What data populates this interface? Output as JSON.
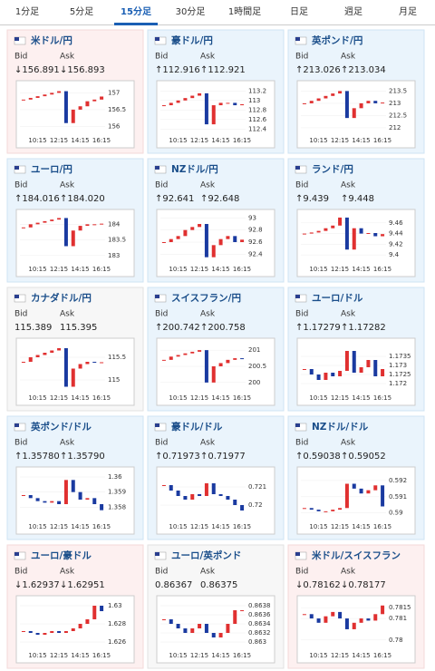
{
  "tabs": [
    "1分足",
    "5分足",
    "15分足",
    "30分足",
    "1時間足",
    "日足",
    "週足",
    "月足"
  ],
  "active_tab": 2,
  "labels": {
    "bid": "Bid",
    "ask": "Ask"
  },
  "x_ticks": [
    "10:15",
    "12:15",
    "14:15",
    "16:15"
  ],
  "cards": [
    {
      "name": "米ドル/円",
      "trend": "down",
      "bid": "↓156.891",
      "ask": "↓156.893",
      "ylim": [
        155.85,
        157.2
      ],
      "yticks": [
        156,
        156.5,
        157
      ],
      "values": [
        156.8,
        156.85,
        156.9,
        156.95,
        157.0,
        157.05,
        156.1,
        156.5,
        156.6,
        156.75,
        156.8,
        156.89
      ]
    },
    {
      "name": "豪ドル/円",
      "trend": "up",
      "bid": "↑112.916",
      "ask": "↑112.921",
      "ylim": [
        112.35,
        113.3
      ],
      "yticks": [
        112.4,
        112.6,
        112.8,
        113,
        113.2
      ],
      "values": [
        112.9,
        112.95,
        113.0,
        113.05,
        113.1,
        113.15,
        112.5,
        112.9,
        112.95,
        112.95,
        112.9,
        112.92
      ]
    },
    {
      "name": "英ポンド/円",
      "trend": "up",
      "bid": "↑213.026",
      "ask": "↑213.034",
      "ylim": [
        211.85,
        213.7
      ],
      "yticks": [
        212,
        212.5,
        213,
        213.5
      ],
      "values": [
        213.0,
        213.1,
        213.2,
        213.3,
        213.4,
        213.5,
        212.4,
        212.8,
        213.0,
        213.1,
        213.0,
        213.03
      ]
    },
    {
      "name": "ユーロ/円",
      "trend": "up",
      "bid": "↑184.016",
      "ask": "↑184.020",
      "ylim": [
        182.85,
        184.3
      ],
      "yticks": [
        183,
        183.5,
        184
      ],
      "values": [
        183.9,
        184.0,
        184.05,
        184.1,
        184.15,
        184.2,
        183.3,
        183.8,
        183.95,
        184.0,
        184.0,
        184.02
      ]
    },
    {
      "name": "NZドル/円",
      "trend": "up",
      "bid": "↑92.641",
      "ask": "↑92.648",
      "ylim": [
        92.3,
        93.05
      ],
      "yticks": [
        92.4,
        92.6,
        92.8,
        93
      ],
      "values": [
        92.6,
        92.65,
        92.7,
        92.8,
        92.85,
        92.9,
        92.35,
        92.55,
        92.65,
        92.7,
        92.6,
        92.64
      ]
    },
    {
      "name": "ランド/円",
      "trend": "up",
      "bid": "↑9.439",
      "ask": "↑9.448",
      "ylim": [
        9.39,
        9.475
      ],
      "yticks": [
        9.4,
        9.42,
        9.44,
        9.46
      ],
      "values": [
        9.44,
        9.442,
        9.445,
        9.45,
        9.455,
        9.47,
        9.41,
        9.45,
        9.44,
        9.441,
        9.435,
        9.439
      ]
    },
    {
      "name": "カナダドル/円",
      "trend": "flat",
      "bid": "115.389",
      "ask": "115.395",
      "ylim": [
        114.8,
        115.8
      ],
      "yticks": [
        115,
        115.5
      ],
      "values": [
        115.4,
        115.5,
        115.55,
        115.6,
        115.65,
        115.7,
        114.85,
        115.25,
        115.35,
        115.4,
        115.38,
        115.39
      ]
    },
    {
      "name": "スイスフラン/円",
      "trend": "up",
      "bid": "↑200.742",
      "ask": "↑200.758",
      "ylim": [
        199.8,
        201.2
      ],
      "yticks": [
        200,
        200.5,
        201
      ],
      "values": [
        200.7,
        200.8,
        200.85,
        200.9,
        200.95,
        201.0,
        200.0,
        200.5,
        200.6,
        200.7,
        200.75,
        200.74
      ]
    },
    {
      "name": "ユーロ/ドル",
      "trend": "up",
      "bid": "↑1.17279",
      "ask": "↑1.17282",
      "ylim": [
        1.1717,
        1.1742
      ],
      "yticks": [
        1.172,
        1.1725,
        1.173,
        1.1735
      ],
      "values": [
        1.1728,
        1.1725,
        1.1722,
        1.1726,
        1.1724,
        1.1727,
        1.1738,
        1.1726,
        1.1729,
        1.1733,
        1.1724,
        1.1728
      ]
    },
    {
      "name": "英ポンド/ドル",
      "trend": "up",
      "bid": "↑1.35780",
      "ask": "↑1.35790",
      "ylim": [
        1.3573,
        1.3603
      ],
      "yticks": [
        1.358,
        1.359,
        1.36
      ],
      "values": [
        1.3588,
        1.3586,
        1.3584,
        1.3583,
        1.3584,
        1.3582,
        1.3598,
        1.359,
        1.3585,
        1.3586,
        1.3582,
        1.3578
      ]
    },
    {
      "name": "豪ドル/ドル",
      "trend": "up",
      "bid": "↑0.71973",
      "ask": "↑0.71977",
      "ylim": [
        0.7193,
        0.7218
      ],
      "yticks": [
        0.72,
        0.721
      ],
      "values": [
        0.7211,
        0.7208,
        0.7205,
        0.7203,
        0.7206,
        0.7205,
        0.7212,
        0.7206,
        0.7205,
        0.7203,
        0.72,
        0.7197
      ]
    },
    {
      "name": "NZドル/ドル",
      "trend": "up",
      "bid": "↑0.59038",
      "ask": "↑0.59052",
      "ylim": [
        0.5897,
        0.5925
      ],
      "yticks": [
        0.59,
        0.591,
        0.592
      ],
      "values": [
        0.5903,
        0.5902,
        0.5901,
        0.5901,
        0.5902,
        0.5903,
        0.5918,
        0.5915,
        0.5912,
        0.5914,
        0.5917,
        0.5904
      ]
    },
    {
      "name": "ユーロ/豪ドル",
      "trend": "down",
      "bid": "↓1.62937",
      "ask": "↓1.62951",
      "ylim": [
        1.6255,
        1.6305
      ],
      "yticks": [
        1.626,
        1.628,
        1.63
      ],
      "values": [
        1.6272,
        1.627,
        1.6268,
        1.627,
        1.6272,
        1.627,
        1.6272,
        1.6275,
        1.628,
        1.6285,
        1.63,
        1.6294
      ]
    },
    {
      "name": "ユーロ/英ポンド",
      "trend": "flat",
      "bid": "0.86367",
      "ask": "0.86375",
      "ylim": [
        0.8629,
        0.8639
      ],
      "yticks": [
        0.863,
        0.8632,
        0.8634,
        0.8636,
        0.8638
      ],
      "values": [
        0.8635,
        0.8634,
        0.8633,
        0.8632,
        0.8633,
        0.8634,
        0.8632,
        0.8631,
        0.8632,
        0.8634,
        0.8637,
        0.8637
      ]
    },
    {
      "name": "米ドル/スイスフラン",
      "trend": "down",
      "bid": "↓0.78162",
      "ask": "↓0.78177",
      "ylim": [
        0.7797,
        0.7818
      ],
      "yticks": [
        0.78,
        0.781,
        0.7815
      ],
      "values": [
        0.7812,
        0.781,
        0.7808,
        0.7811,
        0.7813,
        0.781,
        0.7805,
        0.7808,
        0.781,
        0.7809,
        0.7812,
        0.7816
      ]
    }
  ]
}
